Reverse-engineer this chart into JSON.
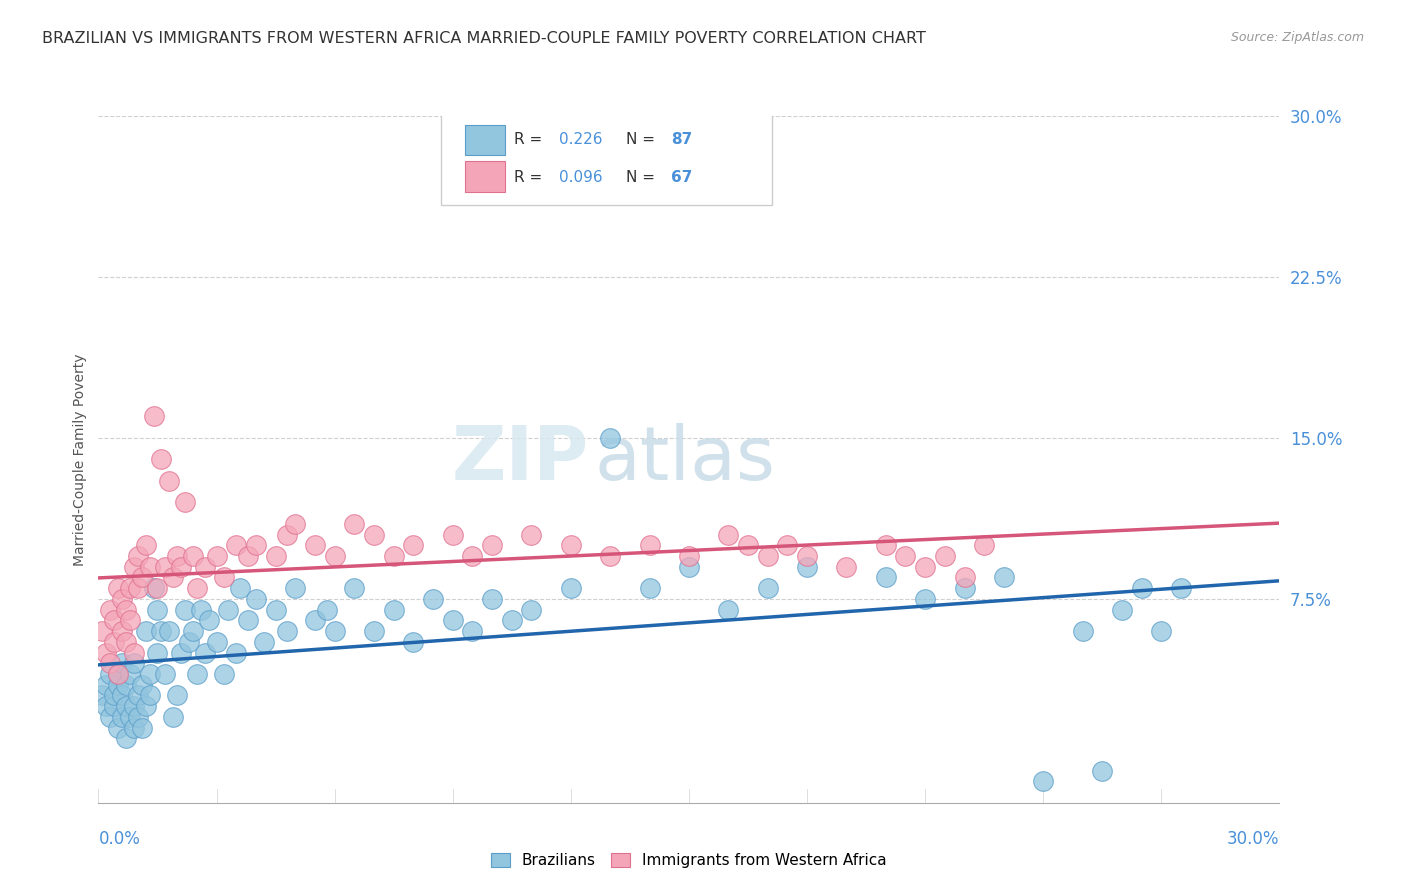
{
  "title": "BRAZILIAN VS IMMIGRANTS FROM WESTERN AFRICA MARRIED-COUPLE FAMILY POVERTY CORRELATION CHART",
  "source": "Source: ZipAtlas.com",
  "ylabel": "Married-Couple Family Poverty",
  "legend_blue_r": "R = 0.226",
  "legend_blue_n": "N = 87",
  "legend_pink_r": "R = 0.096",
  "legend_pink_n": "N = 67",
  "watermark_zip": "ZIP",
  "watermark_atlas": "atlas",
  "blue_scatter_color": "#92c5de",
  "blue_edge_color": "#5b9ec9",
  "pink_scatter_color": "#f4a6b8",
  "pink_edge_color": "#e07090",
  "blue_line_color": "#2166ac",
  "pink_line_color": "#d6567a",
  "title_color": "#333333",
  "source_color": "#999999",
  "axis_label_color": "#4a90d9",
  "grid_color": "#d0d0d0",
  "legend_text_color_black": "#333333",
  "legend_text_color_blue": "#4a90d9",
  "xmin": 0.0,
  "xmax": 0.3,
  "ymin": -0.02,
  "ymax": 0.3,
  "blue_scatter_x": [
    0.001,
    0.002,
    0.002,
    0.003,
    0.003,
    0.004,
    0.004,
    0.005,
    0.005,
    0.005,
    0.006,
    0.006,
    0.006,
    0.007,
    0.007,
    0.007,
    0.008,
    0.008,
    0.009,
    0.009,
    0.009,
    0.01,
    0.01,
    0.011,
    0.011,
    0.012,
    0.012,
    0.013,
    0.013,
    0.014,
    0.015,
    0.015,
    0.016,
    0.017,
    0.018,
    0.019,
    0.02,
    0.021,
    0.022,
    0.023,
    0.024,
    0.025,
    0.026,
    0.027,
    0.028,
    0.03,
    0.032,
    0.033,
    0.035,
    0.036,
    0.038,
    0.04,
    0.042,
    0.045,
    0.048,
    0.05,
    0.055,
    0.058,
    0.06,
    0.065,
    0.07,
    0.075,
    0.08,
    0.085,
    0.09,
    0.095,
    0.1,
    0.105,
    0.11,
    0.12,
    0.13,
    0.14,
    0.15,
    0.16,
    0.17,
    0.18,
    0.2,
    0.21,
    0.22,
    0.23,
    0.24,
    0.25,
    0.255,
    0.26,
    0.265,
    0.27,
    0.275
  ],
  "blue_scatter_y": [
    0.03,
    0.025,
    0.035,
    0.02,
    0.04,
    0.025,
    0.03,
    0.015,
    0.035,
    0.04,
    0.02,
    0.03,
    0.045,
    0.01,
    0.025,
    0.035,
    0.02,
    0.04,
    0.015,
    0.025,
    0.045,
    0.02,
    0.03,
    0.015,
    0.035,
    0.025,
    0.06,
    0.03,
    0.04,
    0.08,
    0.05,
    0.07,
    0.06,
    0.04,
    0.06,
    0.02,
    0.03,
    0.05,
    0.07,
    0.055,
    0.06,
    0.04,
    0.07,
    0.05,
    0.065,
    0.055,
    0.04,
    0.07,
    0.05,
    0.08,
    0.065,
    0.075,
    0.055,
    0.07,
    0.06,
    0.08,
    0.065,
    0.07,
    0.06,
    0.08,
    0.06,
    0.07,
    0.055,
    0.075,
    0.065,
    0.06,
    0.075,
    0.065,
    0.07,
    0.08,
    0.15,
    0.08,
    0.09,
    0.07,
    0.08,
    0.09,
    0.085,
    0.075,
    0.08,
    0.085,
    -0.01,
    0.06,
    -0.005,
    0.07,
    0.08,
    0.06,
    0.08
  ],
  "pink_scatter_x": [
    0.001,
    0.002,
    0.003,
    0.003,
    0.004,
    0.004,
    0.005,
    0.005,
    0.006,
    0.006,
    0.007,
    0.007,
    0.008,
    0.008,
    0.009,
    0.009,
    0.01,
    0.01,
    0.011,
    0.012,
    0.013,
    0.014,
    0.015,
    0.016,
    0.017,
    0.018,
    0.019,
    0.02,
    0.021,
    0.022,
    0.024,
    0.025,
    0.027,
    0.03,
    0.032,
    0.035,
    0.038,
    0.04,
    0.045,
    0.048,
    0.05,
    0.055,
    0.06,
    0.065,
    0.07,
    0.075,
    0.08,
    0.09,
    0.095,
    0.1,
    0.11,
    0.12,
    0.13,
    0.14,
    0.15,
    0.16,
    0.165,
    0.17,
    0.175,
    0.18,
    0.19,
    0.2,
    0.205,
    0.21,
    0.215,
    0.22,
    0.225
  ],
  "pink_scatter_y": [
    0.06,
    0.05,
    0.07,
    0.045,
    0.065,
    0.055,
    0.08,
    0.04,
    0.06,
    0.075,
    0.055,
    0.07,
    0.065,
    0.08,
    0.05,
    0.09,
    0.08,
    0.095,
    0.085,
    0.1,
    0.09,
    0.16,
    0.08,
    0.14,
    0.09,
    0.13,
    0.085,
    0.095,
    0.09,
    0.12,
    0.095,
    0.08,
    0.09,
    0.095,
    0.085,
    0.1,
    0.095,
    0.1,
    0.095,
    0.105,
    0.11,
    0.1,
    0.095,
    0.11,
    0.105,
    0.095,
    0.1,
    0.105,
    0.095,
    0.1,
    0.105,
    0.1,
    0.095,
    0.1,
    0.095,
    0.105,
    0.1,
    0.095,
    0.1,
    0.095,
    0.09,
    0.1,
    0.095,
    0.09,
    0.095,
    0.085,
    0.1
  ]
}
